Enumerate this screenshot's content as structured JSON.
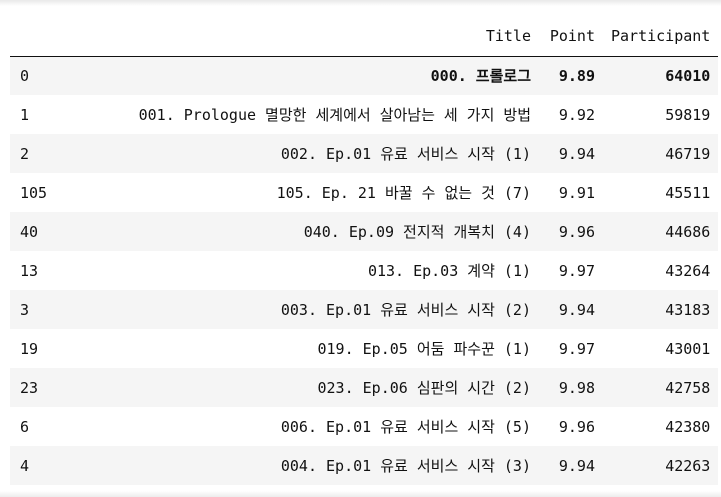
{
  "table": {
    "headers": [
      "",
      "Title",
      "Point",
      "Participant"
    ],
    "rows": [
      {
        "index": "0",
        "title": "000. 프롤로그",
        "point": "9.89",
        "participant": "64010"
      },
      {
        "index": "1",
        "title": "001. Prologue 멸망한 세계에서 살아남는 세 가지 방법",
        "point": "9.92",
        "participant": "59819"
      },
      {
        "index": "2",
        "title": "002. Ep.01 유료 서비스 시작 (1)",
        "point": "9.94",
        "participant": "46719"
      },
      {
        "index": "105",
        "title": "105. Ep. 21 바꿀 수 없는 것 (7)",
        "point": "9.91",
        "participant": "45511"
      },
      {
        "index": "40",
        "title": "040. Ep.09 전지적 개복치 (4)",
        "point": "9.96",
        "participant": "44686"
      },
      {
        "index": "13",
        "title": "013. Ep.03 계약 (1)",
        "point": "9.97",
        "participant": "43264"
      },
      {
        "index": "3",
        "title": "003. Ep.01 유료 서비스 시작 (2)",
        "point": "9.94",
        "participant": "43183"
      },
      {
        "index": "19",
        "title": "019. Ep.05 어둠 파수꾼 (1)",
        "point": "9.97",
        "participant": "43001"
      },
      {
        "index": "23",
        "title": "023. Ep.06 심판의 시간 (2)",
        "point": "9.98",
        "participant": "42758"
      },
      {
        "index": "6",
        "title": "006. Ep.01 유료 서비스 시작 (5)",
        "point": "9.96",
        "participant": "42380"
      },
      {
        "index": "4",
        "title": "004. Ep.01 유료 서비스 시작 (3)",
        "point": "9.94",
        "participant": "42263"
      }
    ]
  }
}
